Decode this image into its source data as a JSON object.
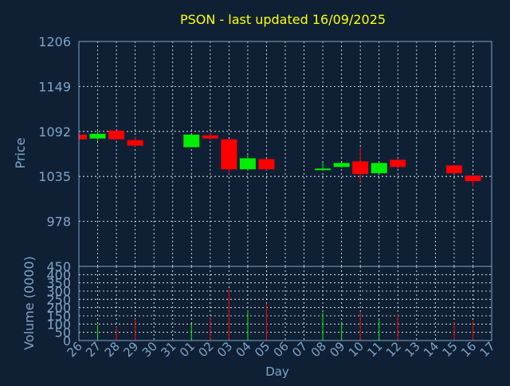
{
  "chart_data": {
    "type": "candlestick",
    "title": "PSON - last updated 16/09/2025",
    "xlabel": "Day",
    "price_panel": {
      "ylabel": "Price",
      "y_ticks": [
        "1206",
        "1149",
        "1092",
        "1035",
        "978"
      ],
      "ylim": [
        921,
        1206
      ]
    },
    "volume_panel": {
      "ylabel": "Volume (0000)",
      "y_ticks": [
        "450",
        "400",
        "350",
        "300",
        "250",
        "200",
        "150",
        "100",
        "50",
        "0"
      ],
      "ylim": [
        0,
        450
      ]
    },
    "x_ticks": [
      "26",
      "27",
      "28",
      "29",
      "30",
      "31",
      "01",
      "02",
      "03",
      "04",
      "05",
      "06",
      "07",
      "08",
      "09",
      "10",
      "11",
      "12",
      "13",
      "14",
      "15",
      "16",
      "17"
    ],
    "candles": [
      {
        "day": "26",
        "open": 1088,
        "close": 1082,
        "high": 1089,
        "low": 1081,
        "volume": 0
      },
      {
        "day": "27",
        "open": 1083,
        "close": 1089,
        "high": 1092,
        "low": 1080,
        "volume": 95
      },
      {
        "day": "28",
        "open": 1093,
        "close": 1082,
        "high": 1093,
        "low": 1081,
        "volume": 85
      },
      {
        "day": "29",
        "open": 1081,
        "close": 1074,
        "high": 1085,
        "low": 1073,
        "volume": 130
      },
      {
        "day": "01",
        "open": 1072,
        "close": 1088,
        "high": 1088,
        "low": 1072,
        "volume": 100
      },
      {
        "day": "02",
        "open": 1087,
        "close": 1083,
        "high": 1091,
        "low": 1082,
        "volume": 140
      },
      {
        "day": "03",
        "open": 1082,
        "close": 1044,
        "high": 1082,
        "low": 1038,
        "volume": 310
      },
      {
        "day": "04",
        "open": 1044,
        "close": 1058,
        "high": 1062,
        "low": 1043,
        "volume": 185
      },
      {
        "day": "05",
        "open": 1057,
        "close": 1044,
        "high": 1057,
        "low": 1043,
        "volume": 225
      },
      {
        "day": "08",
        "open": 1045,
        "close": 1045,
        "high": 1053,
        "low": 1043,
        "volume": 170
      },
      {
        "day": "09",
        "open": 1047,
        "close": 1052,
        "high": 1053,
        "low": 1046,
        "volume": 110
      },
      {
        "day": "10",
        "open": 1054,
        "close": 1038,
        "high": 1072,
        "low": 1028,
        "volume": 175
      },
      {
        "day": "11",
        "open": 1039,
        "close": 1052,
        "high": 1053,
        "low": 1039,
        "volume": 130
      },
      {
        "day": "12",
        "open": 1056,
        "close": 1047,
        "high": 1058,
        "low": 1045,
        "volume": 160
      },
      {
        "day": "15",
        "open": 1049,
        "close": 1039,
        "high": 1049,
        "low": 1038,
        "volume": 110
      },
      {
        "day": "16",
        "open": 1036,
        "close": 1029,
        "high": 1036,
        "low": 1022,
        "volume": 120
      }
    ],
    "colors": {
      "background": "#0f2035",
      "up": "#00ee00",
      "down": "#ff0000",
      "title": "#ffff00",
      "axis_text": "#7fa4c8",
      "grid": "#ffffff",
      "frame": "#7fa4c8"
    }
  }
}
